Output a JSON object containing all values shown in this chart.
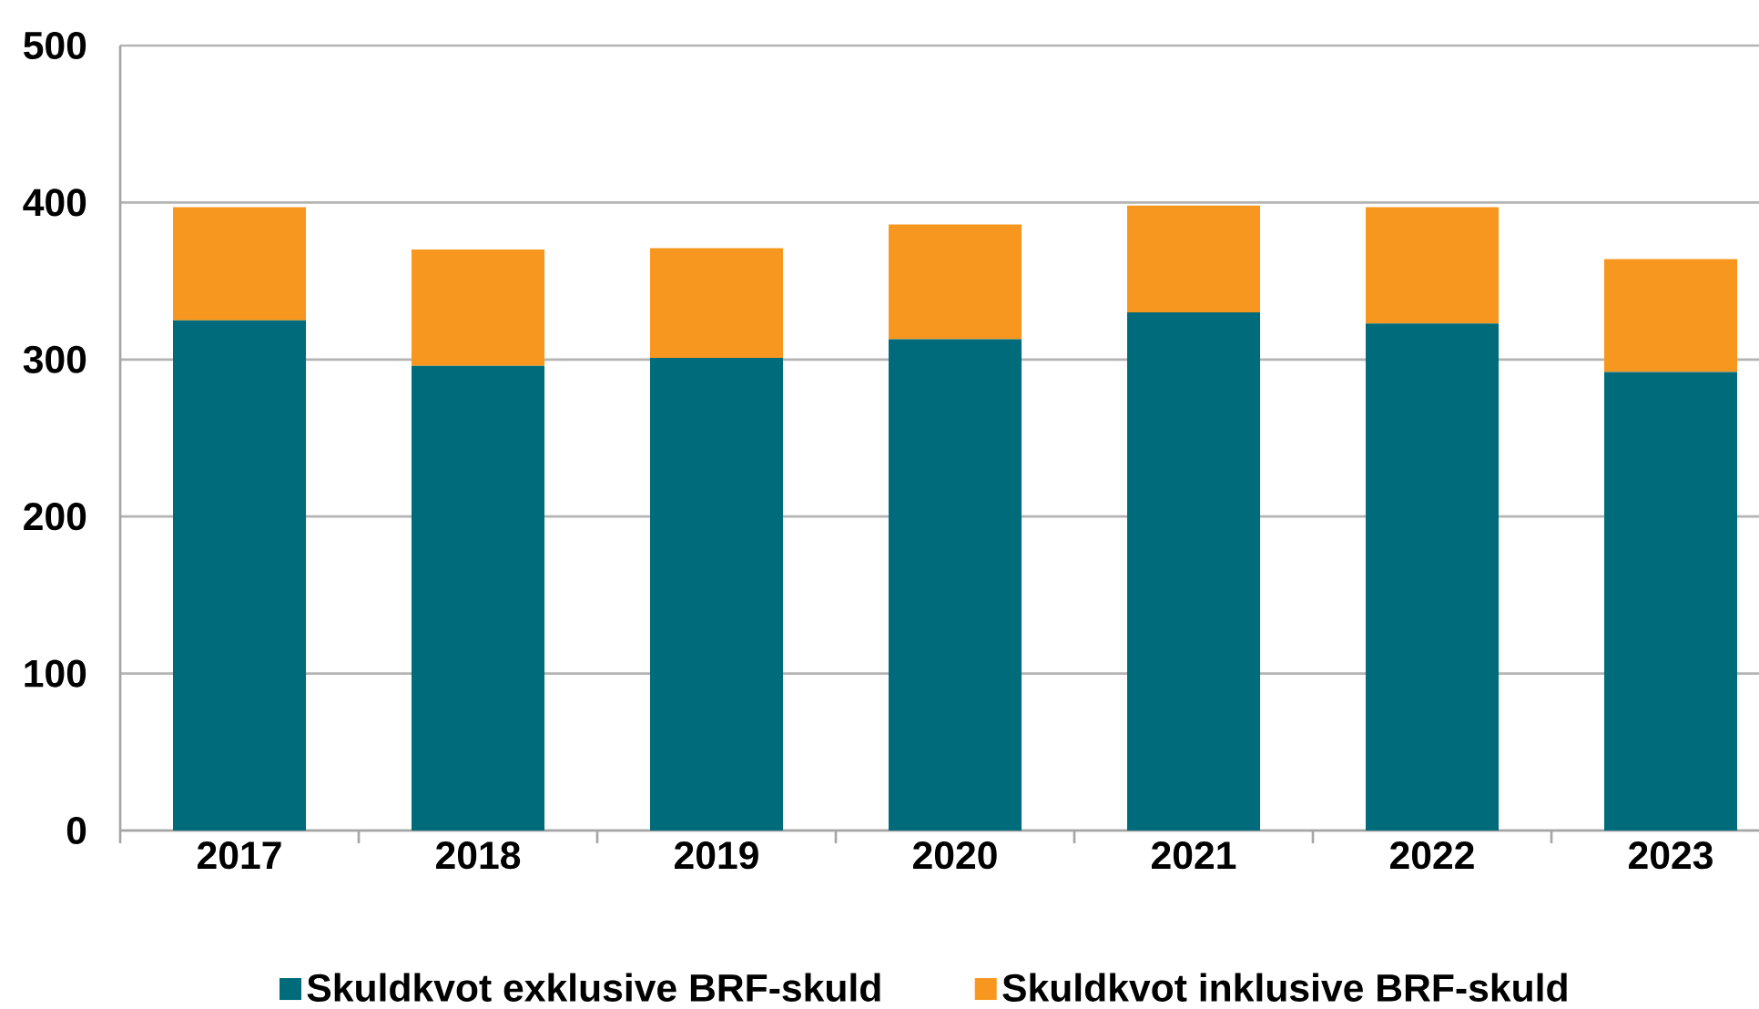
{
  "chart_data": {
    "type": "bar",
    "stacked": true,
    "categories": [
      "2017",
      "2018",
      "2019",
      "2020",
      "2021",
      "2022",
      "2023"
    ],
    "series": [
      {
        "name": "Skuldkvot exklusive BRF-skuld",
        "color": "#006b7a",
        "values": [
          325,
          296,
          301,
          313,
          330,
          323,
          292
        ]
      },
      {
        "name": "Skuldkvot inklusive BRF-skuld",
        "color": "#f7971f",
        "values": [
          72,
          74,
          70,
          73,
          68,
          74,
          72
        ]
      }
    ],
    "ylim": [
      0,
      500
    ],
    "yticks": [
      0,
      100,
      200,
      300,
      400,
      500
    ],
    "grid": "y",
    "legend": "bottom"
  }
}
